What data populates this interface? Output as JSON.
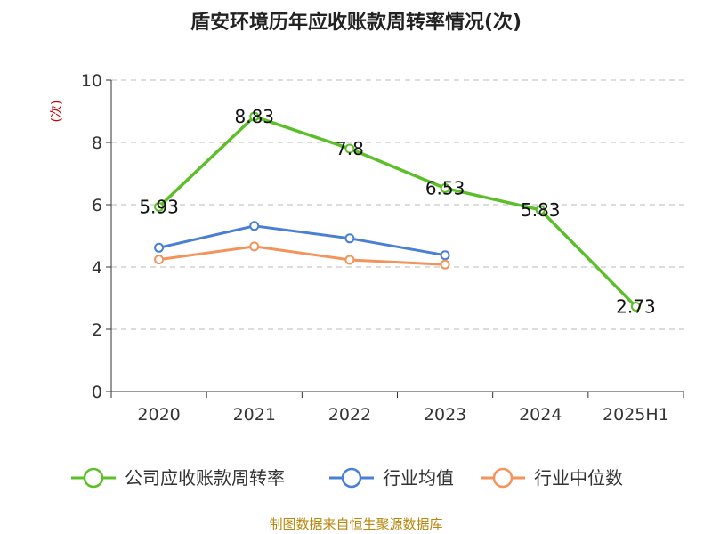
{
  "chart_data": {
    "type": "line",
    "title": "盾安环境历年应收账款周转率情况(次)",
    "ylabel": "(次)",
    "xlabel": "",
    "categories": [
      "2020",
      "2021",
      "2022",
      "2023",
      "2024",
      "2025H1"
    ],
    "ylim": [
      0,
      10
    ],
    "yticks": [
      0,
      2,
      4,
      6,
      8,
      10
    ],
    "grid": true,
    "legend_position": "bottom",
    "series": [
      {
        "name": "公司应收账款周转率",
        "color": "#5cbf2a",
        "values": [
          5.93,
          8.83,
          7.8,
          6.53,
          5.83,
          2.73
        ],
        "labels": [
          "5.93",
          "8.83",
          "7.8",
          "6.53",
          "5.83",
          "2.73"
        ],
        "show_labels": true
      },
      {
        "name": "行业均值",
        "color": "#4a7fd6",
        "values": [
          4.62,
          5.32,
          4.92,
          4.38,
          null,
          null
        ],
        "show_labels": false
      },
      {
        "name": "行业中位数",
        "color": "#f4935b",
        "values": [
          4.24,
          4.66,
          4.23,
          4.08,
          null,
          null
        ],
        "show_labels": false
      }
    ],
    "source": "制图数据来自恒生聚源数据库"
  }
}
